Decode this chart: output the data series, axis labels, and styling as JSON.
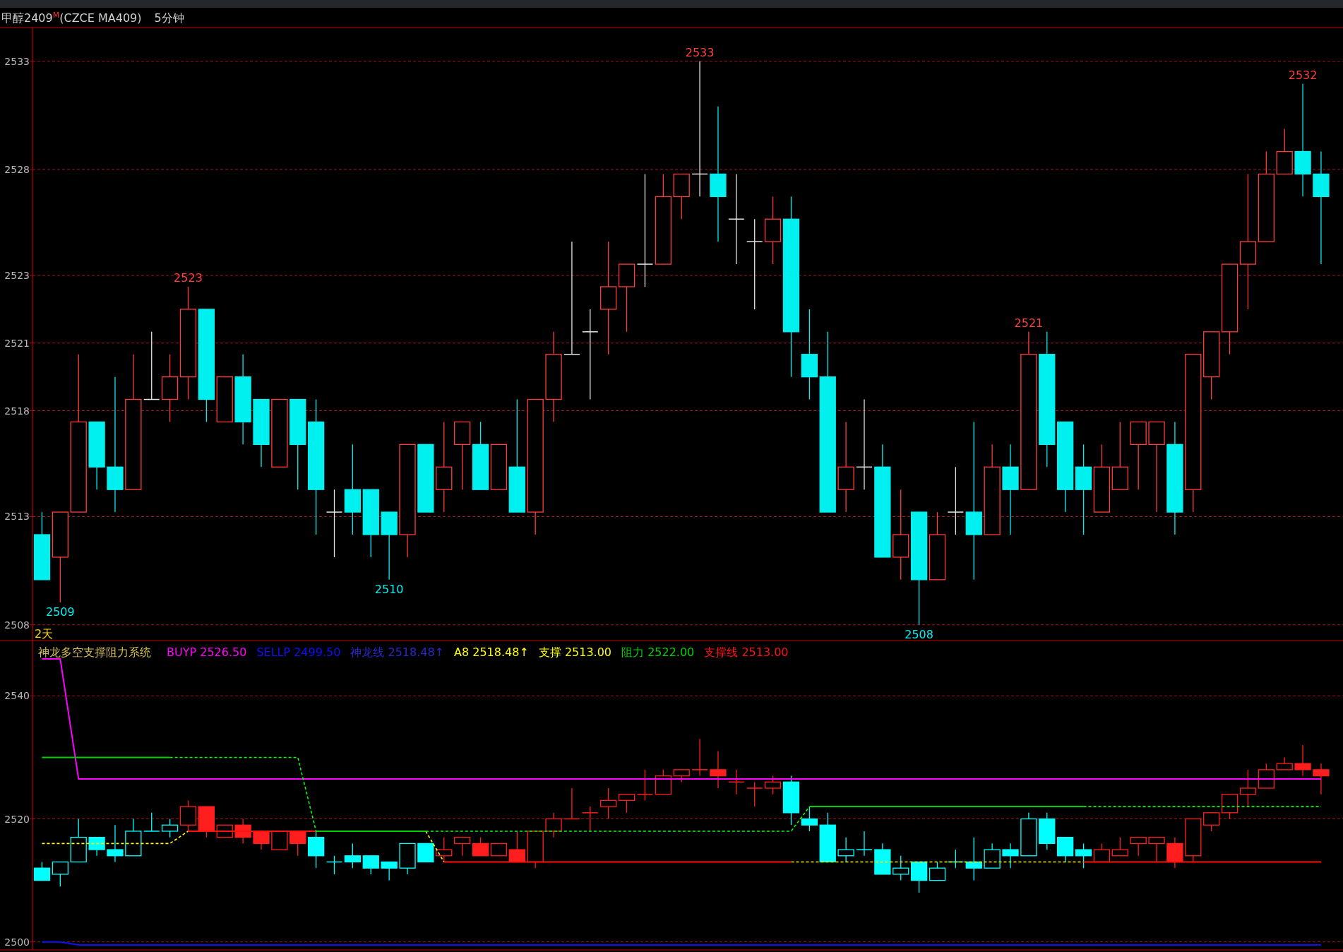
{
  "chart_data": [
    {
      "type": "candlestick",
      "title": "甲醇2409$^{M}$(CZCE MA409)",
      "subtitle": "5分钟",
      "annotations": [
        "2天"
      ],
      "categories": [
        null,
        null,
        null,
        null,
        null,
        null,
        null,
        null,
        null,
        null,
        null,
        null,
        null,
        null,
        null,
        null,
        null,
        null,
        null,
        null,
        null,
        null,
        null,
        null,
        null,
        null,
        null,
        null,
        null,
        null,
        null,
        null,
        null,
        null,
        null,
        null,
        null,
        null,
        null,
        null,
        null,
        null,
        null,
        null,
        null,
        null,
        null,
        null,
        null,
        null,
        null,
        null,
        null,
        null,
        null,
        null,
        null,
        null,
        null,
        null,
        null,
        null,
        null,
        null,
        null,
        null,
        null,
        null,
        null,
        null,
        null
      ],
      "ohlc": [
        [
          2512,
          2513,
          2510,
          2510
        ],
        [
          2511,
          2513,
          2509,
          2513
        ],
        [
          2513,
          2520,
          2513,
          2517
        ],
        [
          2517,
          2517,
          2514,
          2515
        ],
        [
          2515,
          2519,
          2513,
          2514
        ],
        [
          2514,
          2520,
          2514,
          2518
        ],
        [
          2518,
          2521,
          2518,
          2518
        ],
        [
          2518,
          2520,
          2517,
          2519
        ],
        [
          2519,
          2523,
          2518,
          2522
        ],
        [
          2522,
          2522,
          2517,
          2518
        ],
        [
          2517,
          2519,
          2517,
          2519
        ],
        [
          2519,
          2520,
          2516,
          2517
        ],
        [
          2518,
          2518,
          2515,
          2516
        ],
        [
          2515,
          2518,
          2515,
          2518
        ],
        [
          2518,
          2518,
          2514,
          2516
        ],
        [
          2517,
          2518,
          2512,
          2514
        ],
        [
          2513,
          2514,
          2511,
          2513
        ],
        [
          2514,
          2516,
          2512,
          2513
        ],
        [
          2514,
          2514,
          2511,
          2512
        ],
        [
          2513,
          2513,
          2510,
          2512
        ],
        [
          2512,
          2516,
          2511,
          2516
        ],
        [
          2516,
          2516,
          2513,
          2513
        ],
        [
          2514,
          2517,
          2513,
          2515
        ],
        [
          2516,
          2517,
          2514,
          2517
        ],
        [
          2516,
          2517,
          2514,
          2514
        ],
        [
          2514,
          2516,
          2514,
          2516
        ],
        [
          2515,
          2518,
          2513,
          2513
        ],
        [
          2513,
          2518,
          2512,
          2518
        ],
        [
          2518,
          2521,
          2517,
          2520
        ],
        [
          2520,
          2525,
          2520,
          2520
        ],
        [
          2521,
          2522,
          2518,
          2521
        ],
        [
          2522,
          2525,
          2520,
          2523
        ],
        [
          2523,
          2524,
          2521,
          2524
        ],
        [
          2524,
          2528,
          2523,
          2524
        ],
        [
          2524,
          2528,
          2524,
          2527
        ],
        [
          2527,
          2528,
          2526,
          2528
        ],
        [
          2528,
          2533,
          2527,
          2528
        ],
        [
          2528,
          2531,
          2525,
          2527
        ],
        [
          2526,
          2528,
          2524,
          2526
        ],
        [
          2525,
          2526,
          2522,
          2525
        ],
        [
          2525,
          2527,
          2524,
          2526
        ],
        [
          2526,
          2527,
          2519,
          2521
        ],
        [
          2520,
          2522,
          2518,
          2519
        ],
        [
          2519,
          2521,
          2513,
          2513
        ],
        [
          2514,
          2517,
          2513,
          2515
        ],
        [
          2515,
          2518,
          2514,
          2515
        ],
        [
          2515,
          2516,
          2511,
          2511
        ],
        [
          2511,
          2514,
          2510,
          2512
        ],
        [
          2513,
          2513,
          2508,
          2510
        ],
        [
          2510,
          2513,
          2510,
          2512
        ],
        [
          2513,
          2515,
          2512,
          2513
        ],
        [
          2513,
          2517,
          2510,
          2512
        ],
        [
          2512,
          2516,
          2512,
          2515
        ],
        [
          2515,
          2516,
          2512,
          2514
        ],
        [
          2514,
          2521,
          2514,
          2520
        ],
        [
          2520,
          2521,
          2515,
          2516
        ],
        [
          2517,
          2517,
          2513,
          2514
        ],
        [
          2515,
          2516,
          2512,
          2514
        ],
        [
          2513,
          2516,
          2513,
          2515
        ],
        [
          2514,
          2517,
          2514,
          2515
        ],
        [
          2516,
          2517,
          2514,
          2517
        ],
        [
          2516,
          2517,
          2513,
          2517
        ],
        [
          2516,
          2517,
          2512,
          2513
        ],
        [
          2514,
          2520,
          2513,
          2520
        ],
        [
          2519,
          2521,
          2518,
          2521
        ],
        [
          2521,
          2524,
          2520,
          2524
        ],
        [
          2524,
          2528,
          2522,
          2525
        ],
        [
          2525,
          2529,
          2525,
          2528
        ],
        [
          2528,
          2530,
          2528,
          2529
        ],
        [
          2529,
          2532,
          2527,
          2528
        ],
        [
          2528,
          2529,
          2524,
          2527
        ]
      ],
      "colors": [
        "#00f0f0",
        "#ff3c3c",
        "#ff3c3c",
        "#00f0f0",
        "#00f0f0",
        "#ff3c3c",
        "#e6e6e6",
        "#ff3c3c",
        "#ff3c3c",
        "#00f0f0",
        "#ff3c3c",
        "#00f0f0",
        "#00f0f0",
        "#ff3c3c",
        "#00f0f0",
        "#00f0f0",
        "#e6e6e6",
        "#00f0f0",
        "#00f0f0",
        "#00f0f0",
        "#ff3c3c",
        "#00f0f0",
        "#ff3c3c",
        "#ff3c3c",
        "#00f0f0",
        "#ff3c3c",
        "#00f0f0",
        "#ff3c3c",
        "#ff3c3c",
        "#e6e6e6",
        "#e6e6e6",
        "#ff3c3c",
        "#ff3c3c",
        "#e6e6e6",
        "#ff3c3c",
        "#ff3c3c",
        "#e6e6e6",
        "#00f0f0",
        "#e6e6e6",
        "#e6e6e6",
        "#ff3c3c",
        "#00f0f0",
        "#00f0f0",
        "#00f0f0",
        "#ff3c3c",
        "#e6e6e6",
        "#00f0f0",
        "#ff3c3c",
        "#00f0f0",
        "#ff3c3c",
        "#e6e6e6",
        "#00f0f0",
        "#ff3c3c",
        "#00f0f0",
        "#ff3c3c",
        "#00f0f0",
        "#00f0f0",
        "#00f0f0",
        "#ff3c3c",
        "#ff3c3c",
        "#ff3c3c",
        "#ff3c3c",
        "#00f0f0",
        "#ff3c3c",
        "#ff3c3c",
        "#ff3c3c",
        "#ff3c3c",
        "#ff3c3c",
        "#ff3c3c",
        "#00f0f0",
        "#00f0f0"
      ],
      "value_labels": [
        null,
        "2509",
        null,
        null,
        null,
        null,
        null,
        null,
        "2523",
        null,
        null,
        null,
        null,
        null,
        null,
        null,
        null,
        null,
        null,
        "2510",
        null,
        null,
        null,
        null,
        null,
        null,
        null,
        null,
        null,
        null,
        null,
        null,
        null,
        null,
        null,
        null,
        "2533",
        null,
        null,
        null,
        null,
        null,
        null,
        null,
        null,
        null,
        null,
        null,
        "2508",
        null,
        null,
        null,
        null,
        null,
        "2521",
        null,
        null,
        null,
        null,
        null,
        null,
        null,
        null,
        null,
        null,
        null,
        null,
        null,
        null,
        "2532",
        null
      ],
      "ylim": [
        2507.3,
        2534.5
      ],
      "yticks": [
        2533,
        {
          "value": 2528.2,
          "label": "2528"
        },
        {
          "value": 2523.5,
          "label": "2523"
        },
        {
          "value": 2520.5,
          "label": "2521"
        },
        {
          "value": 2517.5,
          "label": "2518"
        },
        {
          "value": 2512.8,
          "label": "2513"
        },
        2508
      ],
      "grid": "y"
    },
    {
      "type": "candlestick",
      "legend": "top left",
      "legend_title": "神龙多空支撑阻力系统",
      "categories": [
        null,
        null,
        null,
        null,
        null,
        null,
        null,
        null,
        null,
        null,
        null,
        null,
        null,
        null,
        null,
        null,
        null,
        null,
        null,
        null,
        null,
        null,
        null,
        null,
        null,
        null,
        null,
        null,
        null,
        null,
        null,
        null,
        null,
        null,
        null,
        null,
        null,
        null,
        null,
        null,
        null,
        null,
        null,
        null,
        null,
        null,
        null,
        null,
        null,
        null,
        null,
        null,
        null,
        null,
        null,
        null,
        null,
        null,
        null,
        null,
        null,
        null,
        null,
        null,
        null,
        null,
        null,
        null,
        null,
        null,
        null
      ],
      "ohlc": [
        [
          2512,
          2513,
          2510,
          2510
        ],
        [
          2511,
          2513,
          2509,
          2513
        ],
        [
          2513,
          2520,
          2513,
          2517
        ],
        [
          2517,
          2517,
          2514,
          2515
        ],
        [
          2515,
          2519,
          2513,
          2514
        ],
        [
          2514,
          2520,
          2514,
          2518
        ],
        [
          2518,
          2521,
          2518,
          2518
        ],
        [
          2518,
          2520,
          2517,
          2519
        ],
        [
          2519,
          2523,
          2518,
          2522
        ],
        [
          2522,
          2522,
          2517,
          2518
        ],
        [
          2517,
          2519,
          2517,
          2519
        ],
        [
          2519,
          2520,
          2516,
          2517
        ],
        [
          2518,
          2518,
          2515,
          2516
        ],
        [
          2515,
          2518,
          2515,
          2518
        ],
        [
          2518,
          2518,
          2514,
          2516
        ],
        [
          2517,
          2518,
          2512,
          2514
        ],
        [
          2513,
          2514,
          2511,
          2513
        ],
        [
          2514,
          2516,
          2512,
          2513
        ],
        [
          2514,
          2514,
          2511,
          2512
        ],
        [
          2513,
          2513,
          2510,
          2512
        ],
        [
          2512,
          2516,
          2511,
          2516
        ],
        [
          2516,
          2516,
          2513,
          2513
        ],
        [
          2514,
          2517,
          2513,
          2515
        ],
        [
          2516,
          2517,
          2514,
          2517
        ],
        [
          2516,
          2517,
          2514,
          2514
        ],
        [
          2514,
          2516,
          2514,
          2516
        ],
        [
          2515,
          2518,
          2513,
          2513
        ],
        [
          2513,
          2518,
          2512,
          2518
        ],
        [
          2518,
          2521,
          2517,
          2520
        ],
        [
          2520,
          2525,
          2520,
          2520
        ],
        [
          2521,
          2522,
          2518,
          2521
        ],
        [
          2522,
          2525,
          2520,
          2523
        ],
        [
          2523,
          2524,
          2521,
          2524
        ],
        [
          2524,
          2528,
          2523,
          2524
        ],
        [
          2524,
          2528,
          2524,
          2527
        ],
        [
          2527,
          2528,
          2526,
          2528
        ],
        [
          2528,
          2533,
          2527,
          2528
        ],
        [
          2528,
          2531,
          2525,
          2527
        ],
        [
          2526,
          2528,
          2524,
          2526
        ],
        [
          2525,
          2526,
          2522,
          2525
        ],
        [
          2525,
          2527,
          2524,
          2526
        ],
        [
          2526,
          2527,
          2519,
          2521
        ],
        [
          2520,
          2522,
          2518,
          2519
        ],
        [
          2519,
          2521,
          2513,
          2513
        ],
        [
          2514,
          2517,
          2513,
          2515
        ],
        [
          2515,
          2518,
          2514,
          2515
        ],
        [
          2515,
          2516,
          2511,
          2511
        ],
        [
          2511,
          2514,
          2510,
          2512
        ],
        [
          2513,
          2513,
          2508,
          2510
        ],
        [
          2510,
          2513,
          2510,
          2512
        ],
        [
          2513,
          2515,
          2512,
          2513
        ],
        [
          2513,
          2517,
          2510,
          2512
        ],
        [
          2512,
          2516,
          2512,
          2515
        ],
        [
          2515,
          2516,
          2512,
          2514
        ],
        [
          2514,
          2521,
          2514,
          2520
        ],
        [
          2520,
          2521,
          2515,
          2516
        ],
        [
          2517,
          2517,
          2513,
          2514
        ],
        [
          2515,
          2516,
          2512,
          2514
        ],
        [
          2513,
          2516,
          2513,
          2515
        ],
        [
          2514,
          2517,
          2514,
          2515
        ],
        [
          2516,
          2517,
          2514,
          2517
        ],
        [
          2516,
          2517,
          2513,
          2517
        ],
        [
          2516,
          2517,
          2512,
          2513
        ],
        [
          2514,
          2520,
          2513,
          2520
        ],
        [
          2519,
          2521,
          2518,
          2521
        ],
        [
          2521,
          2524,
          2520,
          2524
        ],
        [
          2524,
          2528,
          2522,
          2525
        ],
        [
          2525,
          2529,
          2525,
          2528
        ],
        [
          2528,
          2530,
          2528,
          2529
        ],
        [
          2529,
          2532,
          2527,
          2528
        ],
        [
          2528,
          2529,
          2524,
          2527
        ]
      ],
      "colors": [
        "#00ffff",
        "#00ffff",
        "#00ffff",
        "#00ffff",
        "#00ffff",
        "#00ffff",
        "#00ffff",
        "#00ffff",
        "#ff1e1e",
        "#ff1e1e",
        "#ff1e1e",
        "#ff1e1e",
        "#ff1e1e",
        "#ff1e1e",
        "#ff1e1e",
        "#00ffff",
        "#00ffff",
        "#00ffff",
        "#00ffff",
        "#00ffff",
        "#00ffff",
        "#00ffff",
        "#ff1e1e",
        "#ff1e1e",
        "#ff1e1e",
        "#ff1e1e",
        "#ff1e1e",
        "#ff1e1e",
        "#ff1e1e",
        "#ff1e1e",
        "#ff1e1e",
        "#ff1e1e",
        "#ff1e1e",
        "#ff1e1e",
        "#ff1e1e",
        "#ff1e1e",
        "#ff1e1e",
        "#ff1e1e",
        "#ff1e1e",
        "#ff1e1e",
        "#ff1e1e",
        "#00ffff",
        "#00ffff",
        "#00ffff",
        "#00ffff",
        "#00ffff",
        "#00ffff",
        "#00ffff",
        "#00ffff",
        "#00ffff",
        "#00ffff",
        "#00ffff",
        "#00ffff",
        "#00ffff",
        "#00ffff",
        "#00ffff",
        "#00ffff",
        "#00ffff",
        "#ff1e1e",
        "#ff1e1e",
        "#ff1e1e",
        "#ff1e1e",
        "#ff1e1e",
        "#ff1e1e",
        "#ff1e1e",
        "#ff1e1e",
        "#ff1e1e",
        "#ff1e1e",
        "#ff1e1e",
        "#ff1e1e",
        "#ff1e1e"
      ],
      "series": [
        {
          "name": "BUYP 2526.50",
          "type": "line",
          "color": "#ff00ff",
          "line_style": "solid",
          "values": [
            2546,
            2546,
            2526.5,
            2526.5,
            2526.5,
            2526.5,
            2526.5,
            2526.5,
            2526.5,
            2526.5,
            2526.5,
            2526.5,
            2526.5,
            2526.5,
            2526.5,
            2526.5,
            2526.5,
            2526.5,
            2526.5,
            2526.5,
            2526.5,
            2526.5,
            2526.5,
            2526.5,
            2526.5,
            2526.5,
            2526.5,
            2526.5,
            2526.5,
            2526.5,
            2526.5,
            2526.5,
            2526.5,
            2526.5,
            2526.5,
            2526.5,
            2526.5,
            2526.5,
            2526.5,
            2526.5,
            2526.5,
            2526.5,
            2526.5,
            2526.5,
            2526.5,
            2526.5,
            2526.5,
            2526.5,
            2526.5,
            2526.5,
            2526.5,
            2526.5,
            2526.5,
            2526.5,
            2526.5,
            2526.5,
            2526.5,
            2526.5,
            2526.5,
            2526.5,
            2526.5,
            2526.5,
            2526.5,
            2526.5,
            2526.5,
            2526.5,
            2526.5,
            2526.5,
            2526.5,
            2526.5,
            2526.5
          ]
        },
        {
          "name": "SELLP 2499.50",
          "type": "line",
          "color": "#1010ff",
          "line_style": "solid",
          "values": [
            2500,
            2500,
            2499.5,
            2499.5,
            2499.5,
            2499.5,
            2499.5,
            2499.5,
            2499.5,
            2499.5,
            2499.5,
            2499.5,
            2499.5,
            2499.5,
            2499.5,
            2499.5,
            2499.5,
            2499.5,
            2499.5,
            2499.5,
            2499.5,
            2499.5,
            2499.5,
            2499.5,
            2499.5,
            2499.5,
            2499.5,
            2499.5,
            2499.5,
            2499.5,
            2499.5,
            2499.5,
            2499.5,
            2499.5,
            2499.5,
            2499.5,
            2499.5,
            2499.5,
            2499.5,
            2499.5,
            2499.5,
            2499.5,
            2499.5,
            2499.5,
            2499.5,
            2499.5,
            2499.5,
            2499.5,
            2499.5,
            2499.5,
            2499.5,
            2499.5,
            2499.5,
            2499.5,
            2499.5,
            2499.5,
            2499.5,
            2499.5,
            2499.5,
            2499.5,
            2499.5,
            2499.5,
            2499.5,
            2499.5,
            2499.5,
            2499.5,
            2499.5,
            2499.5,
            2499.5,
            2499.5,
            2499.5
          ]
        },
        {
          "name": "神龙线 2518.48↑",
          "type": "line",
          "color": "#2828c8",
          "line_style": "solid",
          "values": [
            null,
            null,
            null,
            null,
            null,
            null,
            null,
            null,
            null,
            null,
            null,
            null,
            null,
            null,
            null,
            null,
            null,
            null,
            null,
            null,
            null,
            null,
            null,
            null,
            null,
            null,
            null,
            null,
            null,
            null,
            null,
            null,
            null,
            null,
            null,
            null,
            null,
            null,
            null,
            null,
            null,
            null,
            null,
            null,
            null,
            null,
            null,
            null,
            null,
            null,
            null,
            null,
            null,
            null,
            null,
            null,
            null,
            null,
            null,
            null,
            null,
            null,
            null,
            null,
            null,
            null,
            null,
            null,
            null,
            null,
            null
          ]
        },
        {
          "name": "A8 2518.48↑",
          "type": "line",
          "color": "#ffff00",
          "line_style": "solid",
          "values": [
            null,
            null,
            null,
            null,
            null,
            null,
            null,
            null,
            null,
            null,
            null,
            null,
            null,
            null,
            null,
            null,
            null,
            null,
            null,
            null,
            null,
            null,
            null,
            null,
            null,
            null,
            null,
            null,
            null,
            null,
            null,
            null,
            null,
            null,
            null,
            null,
            null,
            null,
            null,
            null,
            null,
            null,
            null,
            null,
            null,
            null,
            null,
            null,
            null,
            null,
            null,
            null,
            null,
            null,
            null,
            null,
            null,
            null,
            null,
            null,
            null,
            null,
            null,
            null,
            null,
            null,
            null,
            null,
            null,
            null,
            null
          ]
        },
        {
          "name": "支撑 2513.00",
          "type": "line",
          "color": "#ffff00",
          "line_style": "dashed",
          "values": [
            2516,
            2516,
            2516,
            2516,
            2516,
            2516,
            2516,
            2516,
            2518,
            null,
            null,
            null,
            null,
            null,
            null,
            null,
            null,
            null,
            null,
            null,
            null,
            2518,
            2513,
            null,
            null,
            null,
            null,
            null,
            null,
            null,
            null,
            null,
            null,
            null,
            null,
            null,
            null,
            null,
            null,
            null,
            null,
            2513,
            2513,
            2513,
            2513,
            2513,
            2513,
            2513,
            2513,
            2513,
            2513,
            2513,
            2513,
            2513,
            2513,
            2513,
            2513,
            2513,
            null,
            null,
            null,
            null,
            null,
            null,
            null,
            null,
            null,
            null,
            null,
            null,
            null
          ]
        },
        {
          "name": "阻力 2522.00",
          "type": "line",
          "color": "#00d000",
          "line_style": "solid",
          "values": [
            2530,
            2530,
            2530,
            2530,
            2530,
            2530,
            2530,
            2530,
            null,
            null,
            null,
            null,
            null,
            null,
            null,
            2518,
            2518,
            2518,
            2518,
            2518,
            2518,
            2518,
            null,
            null,
            null,
            null,
            null,
            null,
            null,
            null,
            null,
            null,
            null,
            null,
            null,
            null,
            null,
            null,
            null,
            null,
            null,
            null,
            2522,
            2522,
            2522,
            2522,
            2522,
            2522,
            2522,
            2522,
            2522,
            2522,
            2522,
            2522,
            2522,
            2522,
            2522,
            2522,
            null,
            null,
            null,
            null,
            null,
            null,
            null,
            null,
            null,
            null,
            null,
            null,
            null
          ]
        },
        {
          "name": "支撑线 2513.00",
          "type": "line",
          "color": "#ff1010",
          "line_style": "solid",
          "values": [
            null,
            null,
            null,
            null,
            null,
            null,
            null,
            null,
            2518,
            2518,
            2518,
            2518,
            2518,
            2518,
            2518,
            2518,
            null,
            null,
            null,
            null,
            null,
            null,
            2513,
            2513,
            2513,
            2513,
            2513,
            2513,
            2513,
            2513,
            2513,
            2513,
            2513,
            2513,
            2513,
            2513,
            2513,
            2513,
            2513,
            2513,
            2513,
            2513,
            null,
            null,
            null,
            null,
            null,
            null,
            null,
            null,
            null,
            null,
            null,
            null,
            null,
            null,
            null,
            2513,
            2513,
            2513,
            2513,
            2513,
            2513,
            2513,
            2513,
            2513,
            2513,
            2513,
            2513,
            2513,
            2513
          ]
        },
        {
          "type": "line",
          "color": "#00ff00",
          "line_style": "dashed",
          "values": [
            null,
            null,
            null,
            null,
            null,
            null,
            null,
            2530,
            2530,
            2530,
            2530,
            2530,
            2530,
            2530,
            2530,
            2518,
            null,
            null,
            null,
            null,
            null,
            2518,
            2518,
            2518,
            2518,
            2518,
            2518,
            2518,
            2518,
            2518,
            2518,
            2518,
            2518,
            2518,
            2518,
            2518,
            2518,
            2518,
            2518,
            2518,
            2518,
            2518,
            2522,
            null,
            null,
            null,
            null,
            null,
            null,
            null,
            null,
            null,
            null,
            null,
            null,
            null,
            null,
            2522,
            2522,
            2522,
            2522,
            2522,
            2522,
            2522,
            2522,
            2522,
            2522,
            2522,
            2522,
            2522,
            2522
          ]
        }
      ],
      "ylim": [
        2498.7,
        2549
      ],
      "yticks": [
        2500,
        2520,
        2540
      ],
      "grid": "y"
    }
  ]
}
